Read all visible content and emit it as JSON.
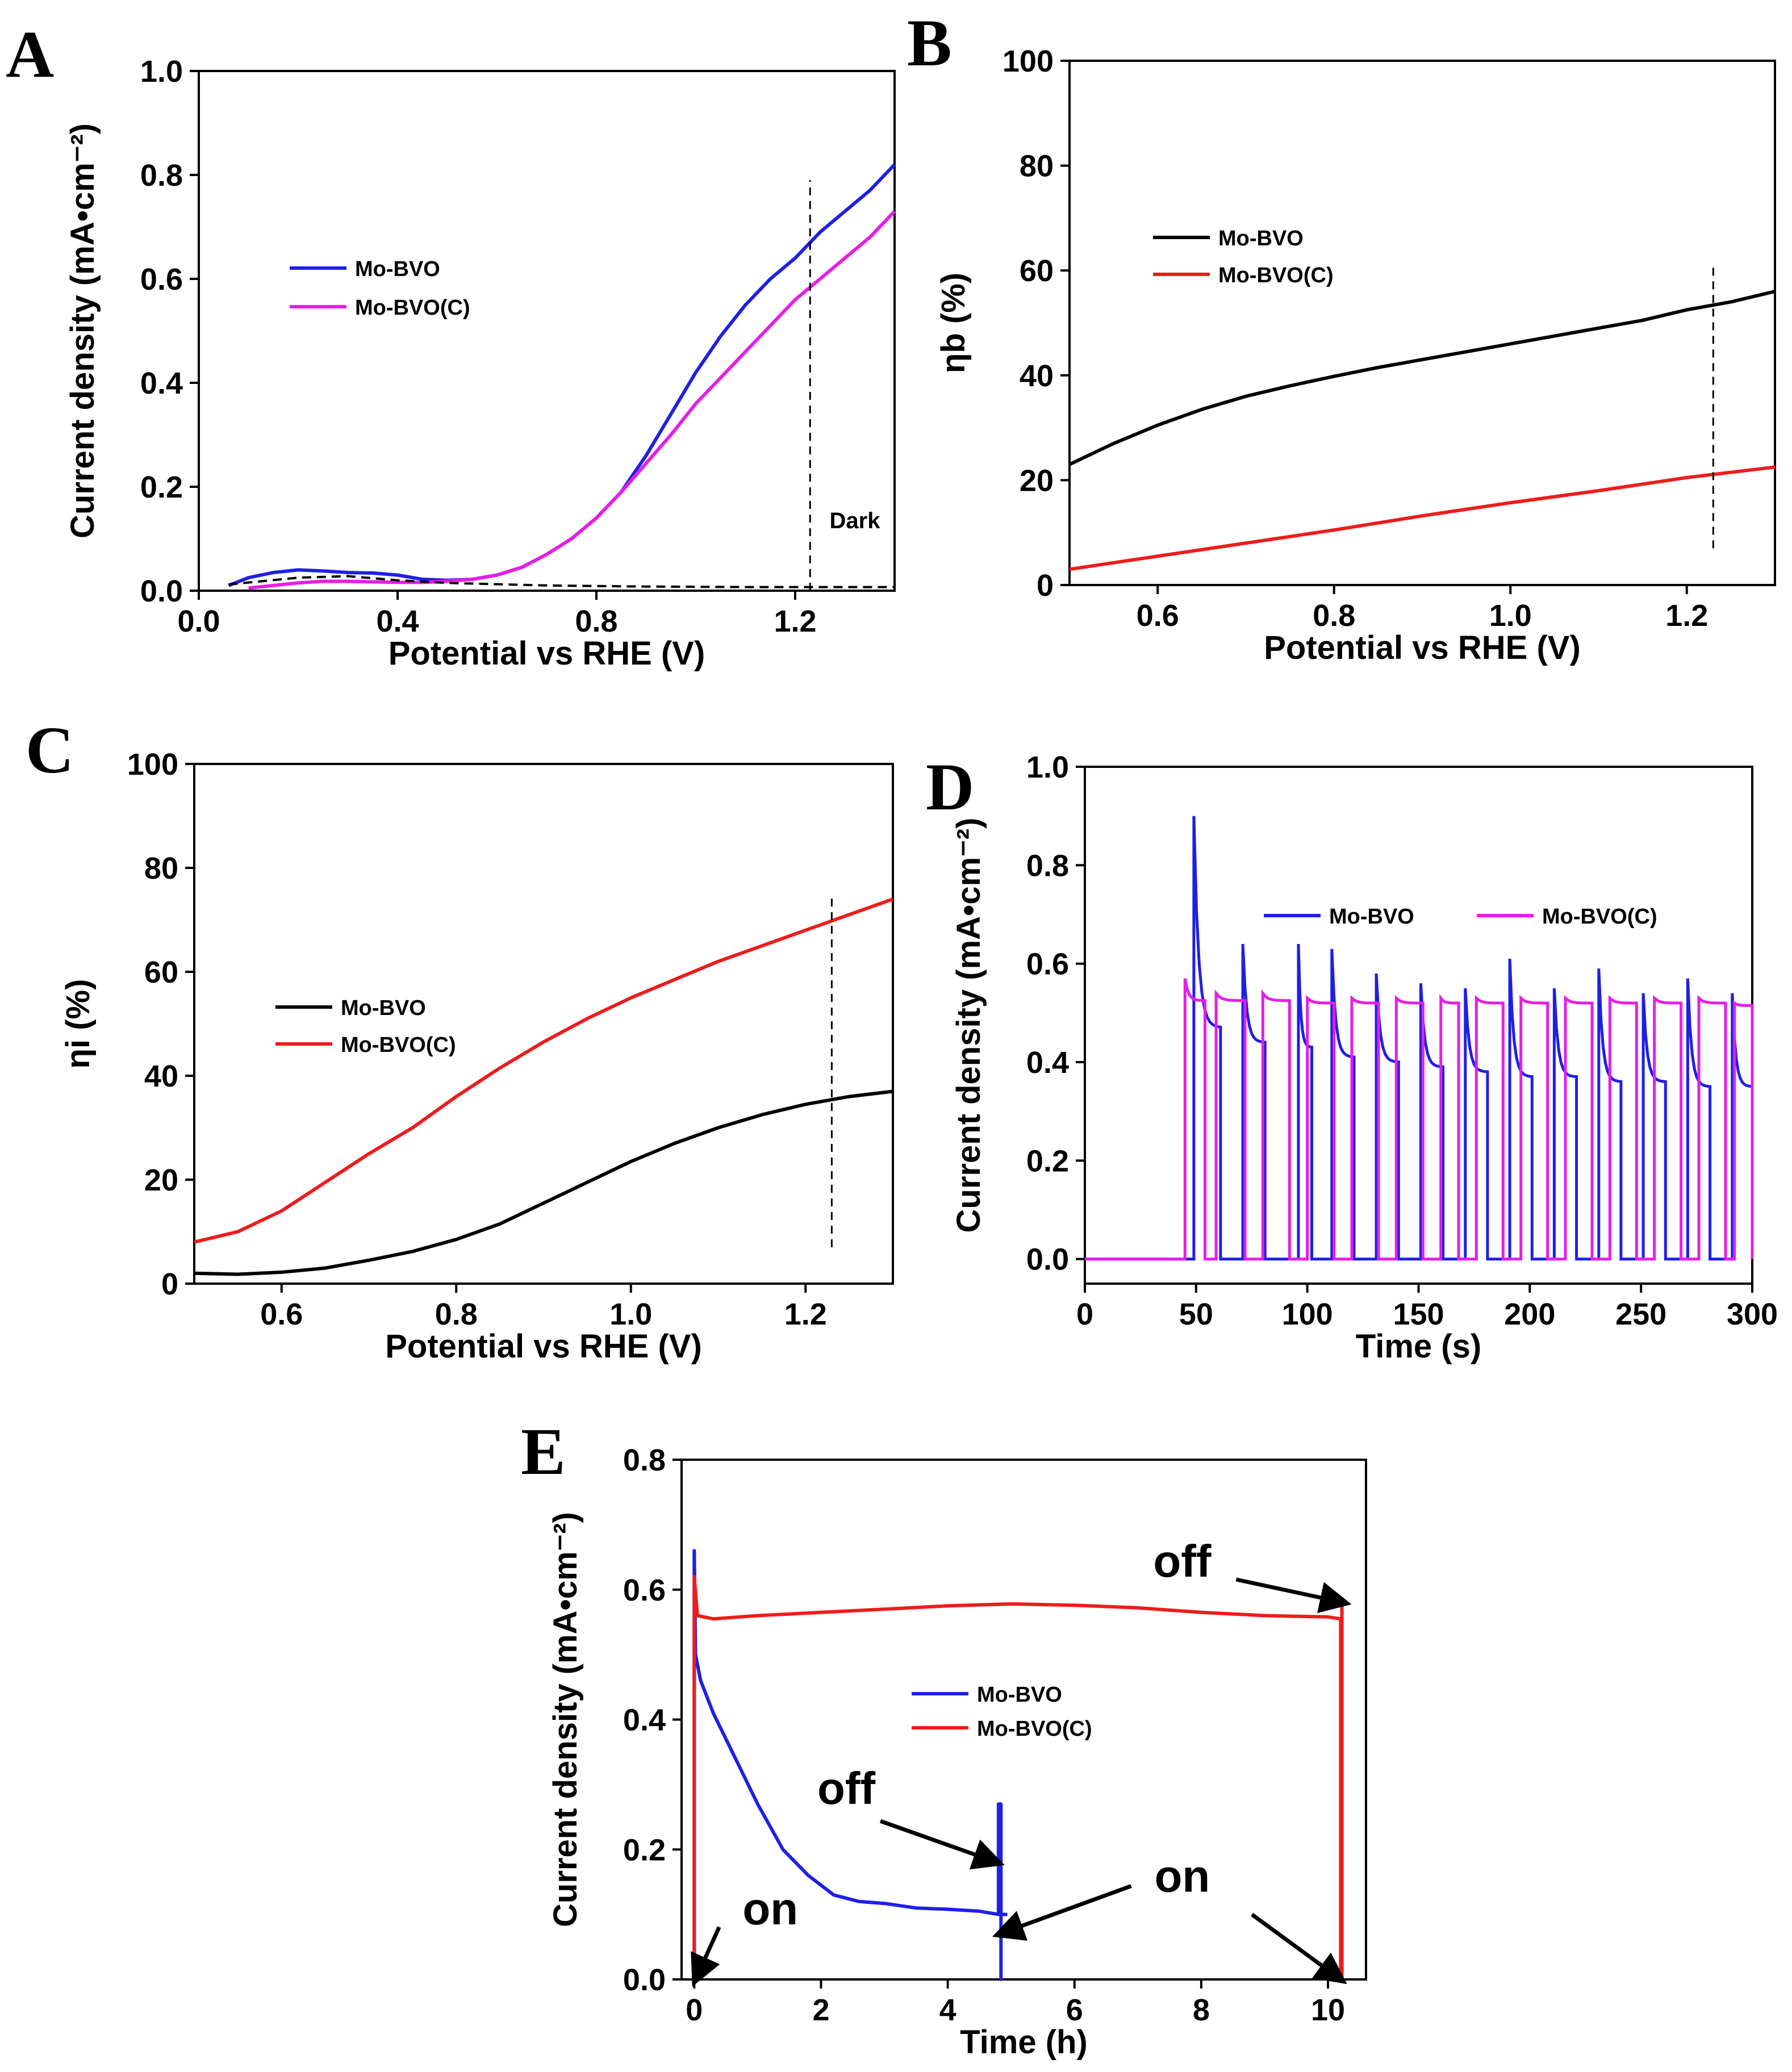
{
  "chart_data": [
    {
      "id": "A",
      "type": "line",
      "panel_label": "A",
      "xlabel": "Potential vs RHE (V)",
      "ylabel": "Current density (mA•cm⁻²)",
      "xlim": [
        0.0,
        1.4
      ],
      "ylim": [
        0.0,
        1.0
      ],
      "xticks": [
        0.0,
        0.4,
        0.8,
        1.2
      ],
      "xtick_labels": [
        "0.0",
        "0.4",
        "0.8",
        "1.2"
      ],
      "yticks": [
        0.0,
        0.2,
        0.4,
        0.6,
        0.8,
        1.0
      ],
      "ytick_labels": [
        "0.0",
        "0.2",
        "0.4",
        "0.6",
        "0.8",
        "1.0"
      ],
      "legend": [
        "Mo-BVO",
        "Mo-BVO(C)"
      ],
      "legend_position": "upper-left",
      "colors": [
        "#1f1fe6",
        "#e61ee6"
      ],
      "annotations": [
        {
          "text": "Dark",
          "x": 1.32,
          "y": 0.12
        }
      ],
      "vline": 1.23,
      "series": [
        {
          "name": "Mo-BVO",
          "color": "#1f1fe6",
          "x": [
            0.06,
            0.1,
            0.15,
            0.2,
            0.25,
            0.3,
            0.35,
            0.4,
            0.45,
            0.5,
            0.55,
            0.6,
            0.65,
            0.7,
            0.75,
            0.8,
            0.85,
            0.9,
            0.95,
            1.0,
            1.05,
            1.1,
            1.15,
            1.2,
            1.25,
            1.3,
            1.35,
            1.4
          ],
          "y": [
            0.01,
            0.025,
            0.035,
            0.04,
            0.038,
            0.035,
            0.034,
            0.03,
            0.022,
            0.02,
            0.022,
            0.03,
            0.045,
            0.07,
            0.1,
            0.14,
            0.19,
            0.26,
            0.34,
            0.42,
            0.49,
            0.55,
            0.6,
            0.64,
            0.69,
            0.73,
            0.77,
            0.82
          ]
        },
        {
          "name": "Mo-BVO(C)",
          "color": "#e61ee6",
          "x": [
            0.1,
            0.15,
            0.2,
            0.25,
            0.3,
            0.35,
            0.4,
            0.45,
            0.5,
            0.55,
            0.6,
            0.65,
            0.7,
            0.75,
            0.8,
            0.85,
            0.9,
            0.95,
            1.0,
            1.05,
            1.1,
            1.15,
            1.2,
            1.25,
            1.3,
            1.35,
            1.4
          ],
          "y": [
            0.005,
            0.01,
            0.015,
            0.018,
            0.018,
            0.017,
            0.016,
            0.016,
            0.018,
            0.022,
            0.03,
            0.045,
            0.07,
            0.1,
            0.14,
            0.19,
            0.245,
            0.3,
            0.36,
            0.41,
            0.46,
            0.51,
            0.56,
            0.6,
            0.64,
            0.68,
            0.73
          ]
        },
        {
          "name": "Dark",
          "color": "#000000",
          "dashed": true,
          "x": [
            0.06,
            0.2,
            0.3,
            0.4,
            0.5,
            0.7,
            0.9,
            1.1,
            1.4
          ],
          "y": [
            0.012,
            0.025,
            0.028,
            0.02,
            0.015,
            0.01,
            0.008,
            0.007,
            0.007
          ]
        }
      ]
    },
    {
      "id": "B",
      "type": "line",
      "panel_label": "B",
      "xlabel": "Potential vs RHE (V)",
      "ylabel": "ηb (%)",
      "xlim": [
        0.5,
        1.3
      ],
      "ylim": [
        0,
        100
      ],
      "xticks": [
        0.6,
        0.8,
        1.0,
        1.2
      ],
      "xtick_labels": [
        "0.6",
        "0.8",
        "1.0",
        "1.2"
      ],
      "yticks": [
        0,
        20,
        40,
        60,
        80,
        100
      ],
      "ytick_labels": [
        "0",
        "20",
        "40",
        "60",
        "80",
        "100"
      ],
      "legend": [
        "Mo-BVO",
        "Mo-BVO(C)"
      ],
      "legend_position": "upper-left",
      "colors": [
        "#000000",
        "#ee1c1c"
      ],
      "vline": 1.23,
      "series": [
        {
          "name": "Mo-BVO",
          "color": "#000000",
          "x": [
            0.5,
            0.55,
            0.6,
            0.65,
            0.7,
            0.75,
            0.8,
            0.85,
            0.9,
            0.95,
            1.0,
            1.05,
            1.1,
            1.15,
            1.2,
            1.25,
            1.3
          ],
          "y": [
            23,
            27,
            30.5,
            33.5,
            36,
            38,
            39.8,
            41.5,
            43,
            44.5,
            46,
            47.5,
            49,
            50.5,
            52.5,
            54,
            56
          ]
        },
        {
          "name": "Mo-BVO(C)",
          "color": "#ee1c1c",
          "x": [
            0.5,
            0.6,
            0.7,
            0.8,
            0.9,
            1.0,
            1.1,
            1.2,
            1.3
          ],
          "y": [
            3,
            5.5,
            8,
            10.5,
            13.2,
            15.7,
            18,
            20.5,
            22.5
          ]
        }
      ]
    },
    {
      "id": "C",
      "type": "line",
      "panel_label": "C",
      "xlabel": "Potential vs RHE (V)",
      "ylabel": "ηi (%)",
      "xlim": [
        0.5,
        1.3
      ],
      "ylim": [
        0,
        100
      ],
      "xticks": [
        0.6,
        0.8,
        1.0,
        1.2
      ],
      "xtick_labels": [
        "0.6",
        "0.8",
        "1.0",
        "1.2"
      ],
      "yticks": [
        0,
        20,
        40,
        60,
        80,
        100
      ],
      "ytick_labels": [
        "0",
        "20",
        "40",
        "60",
        "80",
        "100"
      ],
      "legend": [
        "Mo-BVO",
        "Mo-BVO(C)"
      ],
      "legend_position": "middle-left",
      "colors": [
        "#000000",
        "#ee1c1c"
      ],
      "vline": 1.23,
      "series": [
        {
          "name": "Mo-BVO",
          "color": "#000000",
          "x": [
            0.5,
            0.55,
            0.6,
            0.65,
            0.7,
            0.75,
            0.8,
            0.85,
            0.9,
            0.95,
            1.0,
            1.05,
            1.1,
            1.15,
            1.2,
            1.25,
            1.3
          ],
          "y": [
            2,
            1.8,
            2.2,
            3,
            4.5,
            6.2,
            8.5,
            11.5,
            15.5,
            19.5,
            23.5,
            27,
            30,
            32.5,
            34.5,
            36,
            37
          ]
        },
        {
          "name": "Mo-BVO(C)",
          "color": "#ee1c1c",
          "x": [
            0.5,
            0.55,
            0.6,
            0.65,
            0.7,
            0.75,
            0.8,
            0.85,
            0.9,
            0.95,
            1.0,
            1.05,
            1.1,
            1.15,
            1.2,
            1.25,
            1.3
          ],
          "y": [
            8,
            10,
            14,
            19.5,
            25,
            30,
            36,
            41.5,
            46.5,
            51,
            55,
            58.5,
            62,
            65,
            68,
            71,
            74
          ]
        }
      ]
    },
    {
      "id": "D",
      "type": "line",
      "panel_label": "D",
      "xlabel": "Time (s)",
      "ylabel": "Current density (mA•cm⁻²)",
      "xlim": [
        0,
        300
      ],
      "ylim": [
        -0.05,
        1.0
      ],
      "xticks": [
        0,
        50,
        100,
        150,
        200,
        250,
        300
      ],
      "xtick_labels": [
        "0",
        "50",
        "100",
        "150",
        "200",
        "250",
        "300"
      ],
      "yticks": [
        0.0,
        0.2,
        0.4,
        0.6,
        0.8,
        1.0
      ],
      "ytick_labels": [
        "0.0",
        "0.2",
        "0.4",
        "0.6",
        "0.8",
        "1.0"
      ],
      "legend": [
        "Mo-BVO",
        "Mo-BVO(C)"
      ],
      "legend_position": "top",
      "colors": [
        "#1f1fe6",
        "#e61ee6"
      ],
      "series": [
        {
          "name": "Mo-BVO",
          "color": "#1f1fe6",
          "on_off_pulses": [
            {
              "on": 49,
              "off": 61,
              "peak": 0.9,
              "plateau": 0.47
            },
            {
              "on": 71,
              "off": 81,
              "peak": 0.64,
              "plateau": 0.44
            },
            {
              "on": 96,
              "off": 102,
              "peak": 0.64,
              "plateau": 0.43
            },
            {
              "on": 111,
              "off": 121,
              "peak": 0.63,
              "plateau": 0.41
            },
            {
              "on": 131,
              "off": 141,
              "peak": 0.58,
              "plateau": 0.4
            },
            {
              "on": 151,
              "off": 161,
              "peak": 0.56,
              "plateau": 0.39
            },
            {
              "on": 171,
              "off": 181,
              "peak": 0.55,
              "plateau": 0.38
            },
            {
              "on": 191,
              "off": 201,
              "peak": 0.61,
              "plateau": 0.37
            },
            {
              "on": 211,
              "off": 221,
              "peak": 0.55,
              "plateau": 0.37
            },
            {
              "on": 231,
              "off": 241,
              "peak": 0.59,
              "plateau": 0.36
            },
            {
              "on": 251,
              "off": 261,
              "peak": 0.54,
              "plateau": 0.36
            },
            {
              "on": 271,
              "off": 281,
              "peak": 0.57,
              "plateau": 0.35
            },
            {
              "on": 291,
              "off": 300,
              "peak": 0.54,
              "plateau": 0.35
            }
          ]
        },
        {
          "name": "Mo-BVO(C)",
          "color": "#e61ee6",
          "on_off_pulses": [
            {
              "on": 45,
              "off": 54,
              "peak": 0.57,
              "plateau": 0.525
            },
            {
              "on": 59,
              "off": 72,
              "peak": 0.54,
              "plateau": 0.525
            },
            {
              "on": 80,
              "off": 92,
              "peak": 0.54,
              "plateau": 0.525
            },
            {
              "on": 100,
              "off": 112,
              "peak": 0.53,
              "plateau": 0.52
            },
            {
              "on": 120,
              "off": 132,
              "peak": 0.53,
              "plateau": 0.52
            },
            {
              "on": 140,
              "off": 152,
              "peak": 0.53,
              "plateau": 0.52
            },
            {
              "on": 160,
              "off": 168,
              "peak": 0.53,
              "plateau": 0.52
            },
            {
              "on": 176,
              "off": 188,
              "peak": 0.53,
              "plateau": 0.52
            },
            {
              "on": 196,
              "off": 208,
              "peak": 0.53,
              "plateau": 0.52
            },
            {
              "on": 216,
              "off": 228,
              "peak": 0.53,
              "plateau": 0.52
            },
            {
              "on": 236,
              "off": 248,
              "peak": 0.53,
              "plateau": 0.52
            },
            {
              "on": 256,
              "off": 268,
              "peak": 0.53,
              "plateau": 0.52
            },
            {
              "on": 276,
              "off": 288,
              "peak": 0.53,
              "plateau": 0.52
            },
            {
              "on": 292,
              "off": 300,
              "peak": 0.52,
              "plateau": 0.515
            }
          ]
        }
      ]
    },
    {
      "id": "E",
      "type": "line",
      "panel_label": "E",
      "xlabel": "Time (h)",
      "ylabel": "Current density (mA•cm⁻²)",
      "xlim": [
        -0.2,
        10.6
      ],
      "ylim": [
        0.0,
        0.8
      ],
      "xticks": [
        0,
        2,
        4,
        6,
        8,
        10
      ],
      "xtick_labels": [
        "0",
        "2",
        "4",
        "6",
        "8",
        "10"
      ],
      "yticks": [
        0.0,
        0.2,
        0.4,
        0.6,
        0.8
      ],
      "ytick_labels": [
        "0.0",
        "0.2",
        "0.4",
        "0.6",
        "0.8"
      ],
      "legend": [
        "Mo-BVO",
        "Mo-BVO(C)"
      ],
      "legend_position": "center",
      "colors": [
        "#1f1fe6",
        "#ee1c1c"
      ],
      "annotations": [
        {
          "text": "on",
          "x": 1.2,
          "y": 0.085,
          "arrow_to": [
            0.02,
            0.0
          ]
        },
        {
          "text": "off",
          "x": 2.4,
          "y": 0.27,
          "arrow_to": [
            4.78,
            0.18
          ]
        },
        {
          "text": "on",
          "x": 7.7,
          "y": 0.135,
          "arrow_to": [
            4.82,
            0.07
          ]
        },
        {
          "text": "off",
          "x": 7.7,
          "y": 0.62,
          "arrow_to": [
            10.25,
            0.58
          ]
        },
        {
          "text": "",
          "x": 8.8,
          "y": 0.1,
          "arrow_to": [
            10.2,
            0.0
          ]
        }
      ],
      "series": [
        {
          "name": "Mo-BVO",
          "color": "#1f1fe6",
          "x": [
            0.0,
            0.0,
            0.02,
            0.1,
            0.3,
            0.6,
            1.0,
            1.4,
            1.8,
            2.2,
            2.6,
            3.0,
            3.5,
            4.0,
            4.5,
            4.8,
            4.8,
            4.84,
            4.84,
            4.84,
            4.84,
            4.94
          ],
          "y": [
            0.0,
            0.66,
            0.5,
            0.46,
            0.41,
            0.35,
            0.27,
            0.2,
            0.16,
            0.13,
            0.12,
            0.117,
            0.11,
            0.108,
            0.105,
            0.1,
            0.27,
            0.27,
            0.0,
            0.0,
            0.1,
            0.1
          ]
        },
        {
          "name": "Mo-BVO(C)",
          "color": "#ee1c1c",
          "x": [
            0.0,
            0.0,
            0.05,
            0.3,
            1.0,
            2.0,
            3.0,
            4.0,
            5.0,
            6.0,
            7.0,
            8.0,
            9.0,
            10.0,
            10.2,
            10.2,
            10.22,
            10.22,
            10.22
          ],
          "y": [
            0.0,
            0.62,
            0.56,
            0.555,
            0.56,
            0.565,
            0.57,
            0.575,
            0.578,
            0.576,
            0.572,
            0.565,
            0.56,
            0.558,
            0.555,
            0.0,
            0.0,
            0.58,
            0.0
          ]
        }
      ]
    }
  ]
}
